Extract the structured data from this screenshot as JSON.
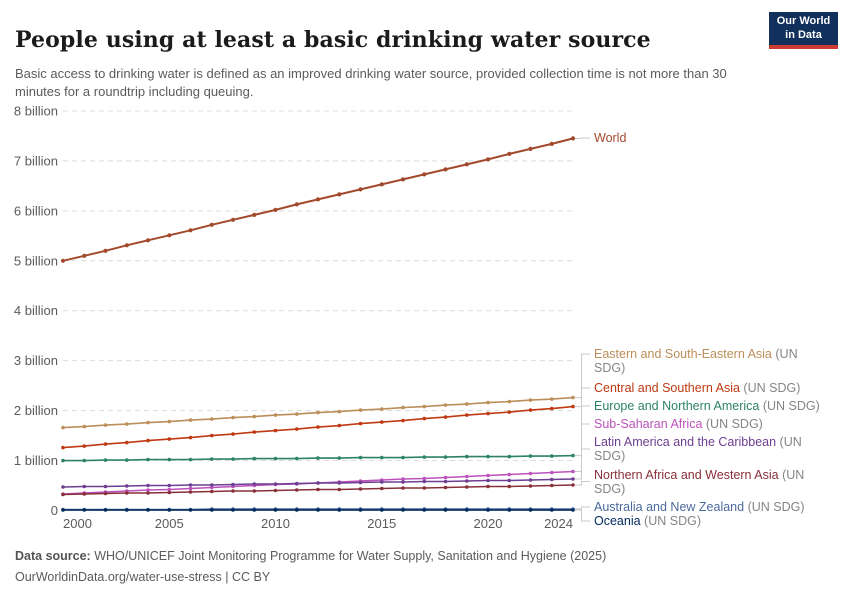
{
  "header": {
    "title": "People using at least a basic drinking water source",
    "subtitle": "Basic access to drinking water is defined as an improved drinking water source, provided collection time is not more than 30 minutes for a roundtrip including queuing.",
    "logo_line1": "Our World",
    "logo_line2": "in Data"
  },
  "legend": {
    "items": [
      {
        "name": "World",
        "suffix": "",
        "color": "#A2492C"
      },
      {
        "name": "Eastern and South-Eastern Asia",
        "suffix": "(UN SDG)",
        "color": "#BC8E5A"
      },
      {
        "name": "Central and Southern Asia",
        "suffix": "(UN SDG)",
        "color": "#BF3912"
      },
      {
        "name": "Europe and Northern America",
        "suffix": "(UN SDG)",
        "color": "#2C8465"
      },
      {
        "name": "Sub-Saharan Africa",
        "suffix": "(UN SDG)",
        "color": "#BC52BC"
      },
      {
        "name": "Latin America and the Caribbean",
        "suffix": "(UN SDG)",
        "color": "#6D3E91"
      },
      {
        "name": "Northern Africa and Western Asia",
        "suffix": "(UN SDG)",
        "color": "#883039"
      },
      {
        "name": "Australia and New Zealand",
        "suffix": "(UN SDG)",
        "color": "#4C6A9C"
      },
      {
        "name": "Oceania",
        "suffix": "(UN SDG)",
        "color": "#00295B"
      }
    ]
  },
  "chart_data": {
    "type": "line",
    "title": "People using at least a basic drinking water source",
    "xlabel": "",
    "ylabel": "",
    "x_range": [
      2000,
      2024
    ],
    "ylim": [
      0,
      8000000000
    ],
    "grid": "dashed-horizontal",
    "legend_position": "right",
    "unit": "billion people",
    "x": [
      2000,
      2001,
      2002,
      2003,
      2004,
      2005,
      2006,
      2007,
      2008,
      2009,
      2010,
      2011,
      2012,
      2013,
      2014,
      2015,
      2016,
      2017,
      2018,
      2019,
      2020,
      2021,
      2022,
      2023,
      2024
    ],
    "xticks": [
      2000,
      2005,
      2010,
      2015,
      2020,
      2024
    ],
    "yticks": [
      {
        "value": 0,
        "label": "0"
      },
      {
        "value": 1,
        "label": "1 billion"
      },
      {
        "value": 2,
        "label": "2 billion"
      },
      {
        "value": 3,
        "label": "3 billion"
      },
      {
        "value": 4,
        "label": "4 billion"
      },
      {
        "value": 5,
        "label": "5 billion"
      },
      {
        "value": 6,
        "label": "6 billion"
      },
      {
        "value": 7,
        "label": "7 billion"
      },
      {
        "value": 8,
        "label": "8 billion"
      }
    ],
    "series": [
      {
        "name": "World",
        "color": "#A2492C",
        "values": [
          5.0,
          5.1,
          5.2,
          5.31,
          5.41,
          5.51,
          5.61,
          5.72,
          5.82,
          5.92,
          6.02,
          6.13,
          6.23,
          6.33,
          6.43,
          6.53,
          6.63,
          6.73,
          6.83,
          6.93,
          7.03,
          7.14,
          7.24,
          7.34,
          7.45
        ]
      },
      {
        "name": "Eastern and South-Eastern Asia (UN SDG)",
        "color": "#BC8E5A",
        "values": [
          1.66,
          1.68,
          1.71,
          1.73,
          1.76,
          1.78,
          1.81,
          1.83,
          1.86,
          1.88,
          1.91,
          1.93,
          1.96,
          1.98,
          2.01,
          2.03,
          2.06,
          2.08,
          2.11,
          2.13,
          2.16,
          2.18,
          2.21,
          2.23,
          2.26
        ]
      },
      {
        "name": "Central and Southern Asia (UN SDG)",
        "color": "#BF3912",
        "values": [
          1.26,
          1.29,
          1.33,
          1.36,
          1.4,
          1.43,
          1.46,
          1.5,
          1.53,
          1.57,
          1.6,
          1.63,
          1.67,
          1.7,
          1.74,
          1.77,
          1.8,
          1.84,
          1.87,
          1.91,
          1.94,
          1.97,
          2.01,
          2.04,
          2.08
        ]
      },
      {
        "name": "Europe and Northern America (UN SDG)",
        "color": "#2C8465",
        "values": [
          1.0,
          1.0,
          1.01,
          1.01,
          1.02,
          1.02,
          1.02,
          1.03,
          1.03,
          1.04,
          1.04,
          1.04,
          1.05,
          1.05,
          1.06,
          1.06,
          1.06,
          1.07,
          1.07,
          1.08,
          1.08,
          1.08,
          1.09,
          1.09,
          1.1
        ]
      },
      {
        "name": "Sub-Saharan Africa (UN SDG)",
        "color": "#BC52BC",
        "values": [
          0.33,
          0.35,
          0.37,
          0.39,
          0.41,
          0.42,
          0.44,
          0.46,
          0.48,
          0.5,
          0.52,
          0.53,
          0.55,
          0.57,
          0.59,
          0.61,
          0.63,
          0.64,
          0.66,
          0.68,
          0.7,
          0.72,
          0.74,
          0.76,
          0.78
        ]
      },
      {
        "name": "Latin America and the Caribbean (UN SDG)",
        "color": "#6D3E91",
        "values": [
          0.47,
          0.48,
          0.48,
          0.49,
          0.5,
          0.5,
          0.51,
          0.51,
          0.52,
          0.53,
          0.53,
          0.54,
          0.55,
          0.55,
          0.56,
          0.57,
          0.57,
          0.58,
          0.58,
          0.59,
          0.6,
          0.6,
          0.61,
          0.62,
          0.63
        ]
      },
      {
        "name": "Northern Africa and Western Asia (UN SDG)",
        "color": "#883039",
        "values": [
          0.32,
          0.33,
          0.34,
          0.35,
          0.35,
          0.36,
          0.37,
          0.38,
          0.39,
          0.39,
          0.4,
          0.41,
          0.42,
          0.42,
          0.43,
          0.44,
          0.45,
          0.45,
          0.46,
          0.47,
          0.48,
          0.48,
          0.49,
          0.5,
          0.51
        ]
      },
      {
        "name": "Australia and New Zealand (UN SDG)",
        "color": "#4C6A9C",
        "values": [
          0.02,
          0.02,
          0.02,
          0.02,
          0.02,
          0.02,
          0.02,
          0.03,
          0.03,
          0.03,
          0.03,
          0.03,
          0.03,
          0.03,
          0.03,
          0.03,
          0.03,
          0.03,
          0.03,
          0.03,
          0.03,
          0.03,
          0.03,
          0.03,
          0.03
        ]
      },
      {
        "name": "Oceania (UN SDG)",
        "color": "#00295B",
        "values": [
          0.01,
          0.01,
          0.01,
          0.01,
          0.01,
          0.01,
          0.01,
          0.01,
          0.01,
          0.01,
          0.01,
          0.01,
          0.01,
          0.01,
          0.01,
          0.01,
          0.01,
          0.01,
          0.01,
          0.01,
          0.01,
          0.01,
          0.01,
          0.01,
          0.01
        ]
      }
    ]
  },
  "footer": {
    "data_source_label": "Data source:",
    "data_source_text": "WHO/UNICEF Joint Monitoring Programme for Water Supply, Sanitation and Hygiene (2025)",
    "license_line": "OurWorldinData.org/water-use-stress | CC BY"
  }
}
